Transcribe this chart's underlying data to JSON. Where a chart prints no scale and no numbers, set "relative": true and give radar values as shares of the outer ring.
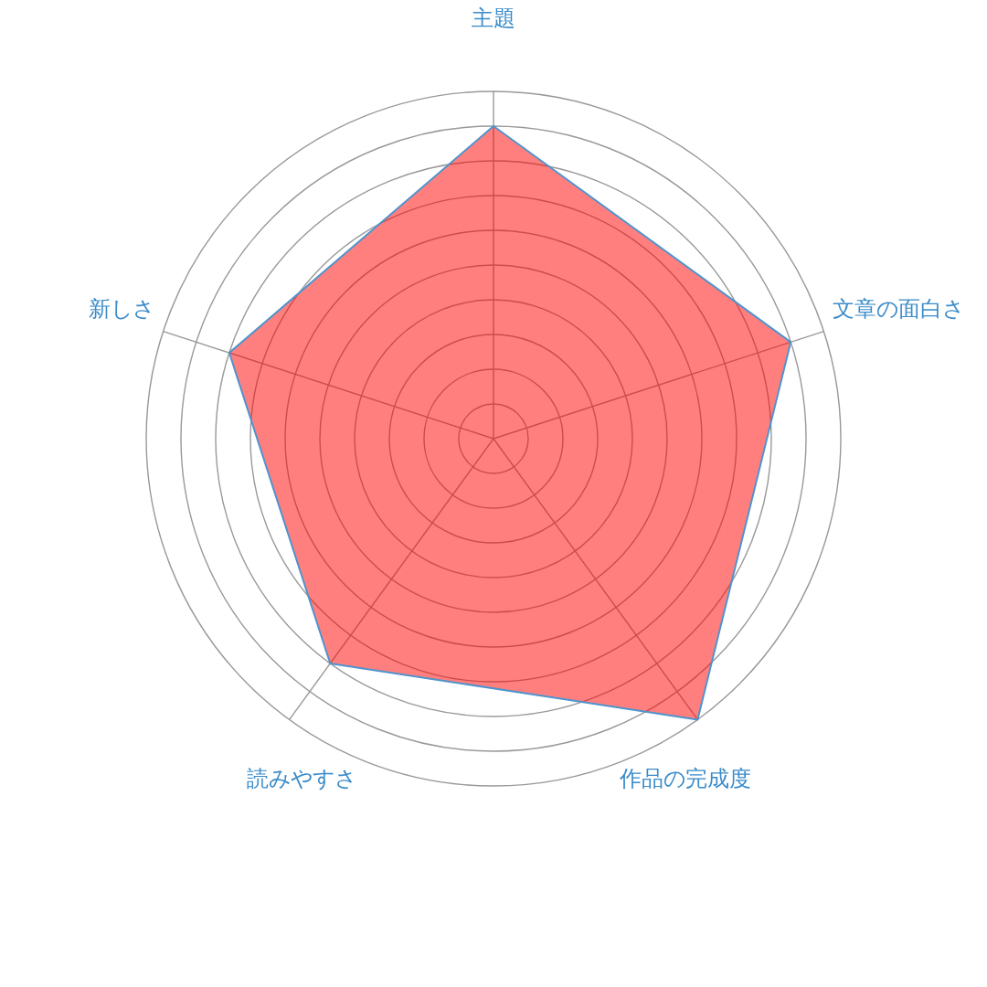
{
  "chart_data": {
    "type": "radar",
    "relative": true,
    "categories": [
      "主題",
      "文章の面白さ",
      "作品の完成度",
      "読みやすさ",
      "新しさ"
    ],
    "series": [
      {
        "color": "#ff0000",
        "values": [
          0.9,
          0.9,
          1.0,
          0.8,
          0.8
        ]
      }
    ],
    "grid": true
  }
}
